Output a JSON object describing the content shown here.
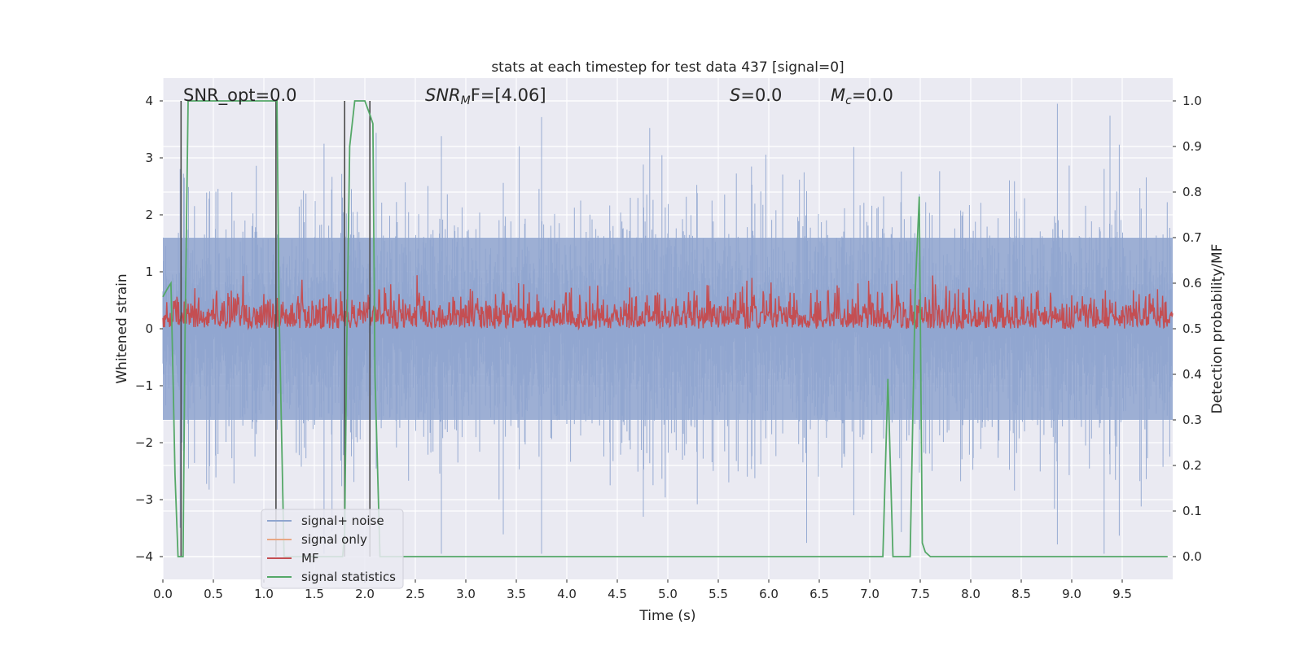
{
  "chart_data": {
    "type": "line",
    "title": "stats at each timestep for test data 437 [signal=0]",
    "xlabel": "Time (s)",
    "ylabel_left": "Whitened strain",
    "ylabel_right": "Detection probability/MF",
    "xlim": [
      0.0,
      10.0
    ],
    "ylim_left": [
      -4.4,
      4.4
    ],
    "ylim_right": [
      -0.05,
      1.05
    ],
    "x_ticks": [
      "0.0",
      "0.5",
      "1.0",
      "1.5",
      "2.0",
      "2.5",
      "3.0",
      "3.5",
      "4.0",
      "4.5",
      "5.0",
      "5.5",
      "6.0",
      "6.5",
      "7.0",
      "7.5",
      "8.0",
      "8.5",
      "9.0",
      "9.5"
    ],
    "x_tick_values": [
      0.0,
      0.5,
      1.0,
      1.5,
      2.0,
      2.5,
      3.0,
      3.5,
      4.0,
      4.5,
      5.0,
      5.5,
      6.0,
      6.5,
      7.0,
      7.5,
      8.0,
      8.5,
      9.0,
      9.5
    ],
    "y_left_ticks": [
      "4",
      "3",
      "2",
      "1",
      "0",
      "−1",
      "−2",
      "−3",
      "−4"
    ],
    "y_left_tick_values": [
      4,
      3,
      2,
      1,
      0,
      -1,
      -2,
      -3,
      -4
    ],
    "y_right_ticks": [
      "1.0",
      "0.9",
      "0.8",
      "0.7",
      "0.6",
      "0.5",
      "0.4",
      "0.3",
      "0.2",
      "0.1",
      "0.0"
    ],
    "y_right_tick_values": [
      1.0,
      0.9,
      0.8,
      0.7,
      0.6,
      0.5,
      0.4,
      0.3,
      0.2,
      0.1,
      0.0
    ],
    "grid": true,
    "legend_position": "lower-left",
    "annotations": {
      "snr_opt": "SNR_opt=0.0",
      "snr_mf_prefix": "SNR",
      "snr_mf_sub": "M",
      "snr_mf_suffix": "F=[4.06]",
      "s_label": "S",
      "s_value": "=0.0",
      "mc_label": "M",
      "mc_sub": "c",
      "mc_value": "=0.0"
    },
    "series": [
      {
        "name": "signal+ noise",
        "color": "#8fa5cf",
        "axis": "left",
        "style": "dense noise, amplitude about ±2.5 with spikes to ±4"
      },
      {
        "name": "signal only",
        "color": "#e8a784",
        "axis": "left",
        "values": []
      },
      {
        "name": "MF",
        "color": "#c44e52",
        "axis": "right",
        "style": "noisy band between 0.50 and about 0.60 with peaks up to 0.63"
      },
      {
        "name": "signal statistics",
        "color": "#55a868",
        "axis": "right",
        "x": [
          0.0,
          0.05,
          0.08,
          0.1,
          0.12,
          0.15,
          0.2,
          0.22,
          0.25,
          0.3,
          0.5,
          0.8,
          1.0,
          1.1,
          1.13,
          1.15,
          1.2,
          1.3,
          1.5,
          1.7,
          1.78,
          1.8,
          1.82,
          1.85,
          1.9,
          2.0,
          2.05,
          2.08,
          2.1,
          2.15,
          2.2,
          2.4,
          3.0,
          4.0,
          4.5,
          5.0,
          6.0,
          7.0,
          7.13,
          7.18,
          7.23,
          7.3,
          7.35,
          7.4,
          7.45,
          7.49,
          7.52,
          7.55,
          7.6,
          7.7,
          8.0,
          9.0,
          9.95
        ],
        "y": [
          0.57,
          0.59,
          0.6,
          0.4,
          0.18,
          0.0,
          0.0,
          0.5,
          1.0,
          1.0,
          1.0,
          1.0,
          1.0,
          1.0,
          1.0,
          0.55,
          0.0,
          0.0,
          0.0,
          0.0,
          0.0,
          0.05,
          0.45,
          0.9,
          1.0,
          1.0,
          0.97,
          0.95,
          0.4,
          0.0,
          0.0,
          0.0,
          0.0,
          0.0,
          0.0,
          0.0,
          0.0,
          0.0,
          0.0,
          0.39,
          0.0,
          0.0,
          0.0,
          0.0,
          0.58,
          0.79,
          0.03,
          0.01,
          0.0,
          0.0,
          0.0,
          0.0,
          0.0
        ]
      }
    ],
    "vertical_markers_x": [
      0.18,
      1.12,
      1.8,
      2.05
    ],
    "colors": {
      "plot_background": "#eaeaf2",
      "grid": "#ffffff",
      "legend_background": "#eaeaf2",
      "marker_line": "#4a4a4a"
    }
  }
}
